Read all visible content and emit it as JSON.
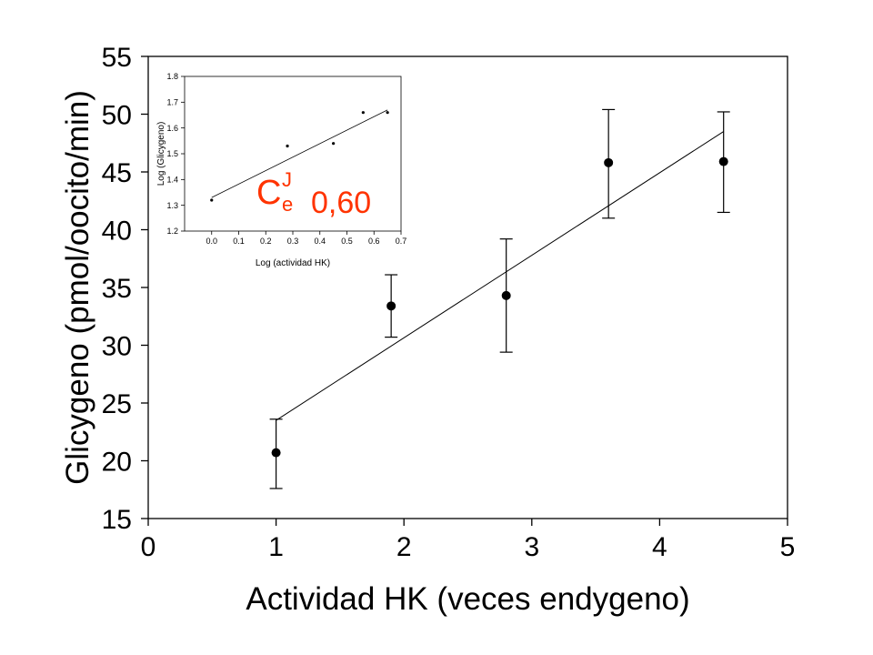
{
  "chart_data": [
    {
      "type": "scatter",
      "xlabel": "Actividad HK (veces endygeno)",
      "ylabel": "Glicygeno (pmol/oocito/min)",
      "xlim": [
        0,
        5
      ],
      "ylim": [
        15,
        55
      ],
      "x_ticks": [
        "0",
        "1",
        "2",
        "3",
        "4",
        "5"
      ],
      "y_ticks": [
        "15",
        "20",
        "25",
        "30",
        "35",
        "40",
        "45",
        "50",
        "55"
      ],
      "grid": false,
      "series": [
        {
          "x": [
            1.0,
            1.9,
            2.8,
            3.6,
            4.5
          ],
          "y": [
            20.7,
            33.4,
            34.3,
            45.8,
            45.9
          ],
          "y_err_upper": [
            23.6,
            36.1,
            39.2,
            50.4,
            50.2
          ],
          "y_err_lower": [
            17.6,
            30.7,
            29.4,
            41.0,
            41.5
          ]
        }
      ],
      "fit_line": {
        "x": [
          1.0,
          4.5
        ],
        "y": [
          23.5,
          48.5
        ]
      },
      "annotation": {
        "symbol": "C",
        "superscript": "J",
        "subscript": "e",
        "value": "0,60",
        "color": "#ff3300"
      }
    },
    {
      "type": "scatter",
      "xlabel": "Log (actividad HK)",
      "ylabel": "Log (Glicygeno)",
      "xlim": [
        -0.1,
        0.7
      ],
      "ylim": [
        1.2,
        1.8
      ],
      "x_ticks": [
        "0.0",
        "0.1",
        "0.2",
        "0.3",
        "0.4",
        "0.5",
        "0.6",
        "0.7"
      ],
      "y_ticks": [
        "1.2",
        "1.3",
        "1.4",
        "1.5",
        "1.6",
        "1.7",
        "1.8"
      ],
      "grid": false,
      "series": [
        {
          "x": [
            0.0,
            0.28,
            0.45,
            0.56,
            0.65
          ],
          "y": [
            1.32,
            1.53,
            1.54,
            1.66,
            1.66
          ]
        }
      ],
      "fit_line": {
        "x": [
          0.0,
          0.65
        ],
        "y": [
          1.33,
          1.67
        ]
      }
    }
  ]
}
